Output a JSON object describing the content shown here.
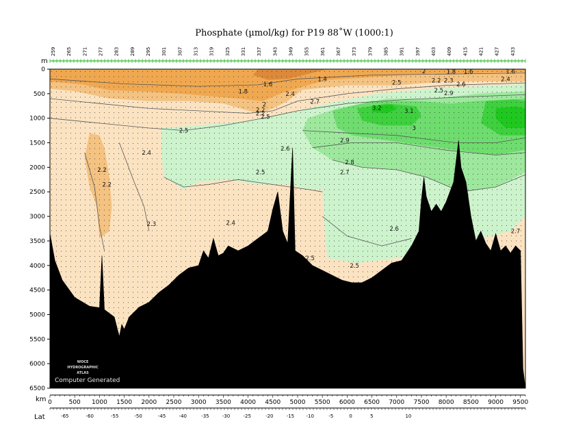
{
  "chart_data": {
    "type": "heatmap",
    "title": "Phosphate (µmol/kg) for P19 88˚W (1000:1)",
    "ylabel": "m",
    "xlabel": "km",
    "lat_label": "Lat",
    "ylim": [
      0,
      6500
    ],
    "xlim": [
      0,
      9600
    ],
    "y_ticks": [
      0,
      500,
      1000,
      1500,
      2000,
      2500,
      3000,
      3500,
      4000,
      4500,
      5000,
      5500,
      6000,
      6500
    ],
    "x_ticks": [
      0,
      500,
      1000,
      1500,
      2000,
      2500,
      3000,
      3500,
      4000,
      4500,
      5000,
      5500,
      6000,
      6500,
      7000,
      7500,
      8000,
      8500,
      9000,
      9500
    ],
    "lat_ticks": [
      {
        "label": "-65",
        "km": 100
      },
      {
        "label": "-60",
        "km": 1050
      },
      {
        "label": "-55",
        "km": 2000
      },
      {
        "label": "-50",
        "km": 2900
      },
      {
        "label": "-45",
        "km": 3800
      },
      {
        "label": "-40",
        "km": 4600
      },
      {
        "label": "-35",
        "km": 5450
      },
      {
        "label": "-30",
        "km": 6250
      },
      {
        "label": "-25",
        "km": 7050
      },
      {
        "label": "-20",
        "km": 7900
      },
      {
        "label": "-15",
        "km": 8700
      },
      {
        "label": "-10",
        "km": 9450
      },
      {
        "label": "-5",
        "km": 10250
      },
      {
        "label": "0",
        "km": 11000
      },
      {
        "label": "5",
        "km": 11800
      },
      {
        "label": "10",
        "km": 13200
      }
    ],
    "station_numbers": [
      "259",
      "265",
      "271",
      "277",
      "283",
      "289",
      "295",
      "301",
      "307",
      "313",
      "319",
      "325",
      "331",
      "337",
      "343",
      "349",
      "355",
      "361",
      "367",
      "373",
      "379",
      "385",
      "391",
      "397",
      "403",
      "409",
      "415",
      "421",
      "427",
      "433"
    ],
    "bathymetry_depth_m": [
      [
        0,
        3350
      ],
      [
        100,
        3900
      ],
      [
        250,
        4300
      ],
      [
        500,
        4650
      ],
      [
        800,
        4830
      ],
      [
        1000,
        4860
      ],
      [
        1050,
        3800
      ],
      [
        1100,
        4900
      ],
      [
        1300,
        5050
      ],
      [
        1400,
        5450
      ],
      [
        1450,
        5200
      ],
      [
        1500,
        5300
      ],
      [
        1600,
        5050
      ],
      [
        1800,
        4850
      ],
      [
        2000,
        4750
      ],
      [
        2200,
        4550
      ],
      [
        2400,
        4400
      ],
      [
        2600,
        4200
      ],
      [
        2800,
        4050
      ],
      [
        3000,
        4000
      ],
      [
        3100,
        3700
      ],
      [
        3200,
        3850
      ],
      [
        3300,
        3450
      ],
      [
        3400,
        3800
      ],
      [
        3500,
        3750
      ],
      [
        3600,
        3600
      ],
      [
        3800,
        3700
      ],
      [
        4000,
        3600
      ],
      [
        4200,
        3450
      ],
      [
        4400,
        3300
      ],
      [
        4500,
        2850
      ],
      [
        4600,
        2500
      ],
      [
        4700,
        3300
      ],
      [
        4800,
        3550
      ],
      [
        4900,
        1600
      ],
      [
        4950,
        3700
      ],
      [
        5100,
        3800
      ],
      [
        5300,
        4000
      ],
      [
        5500,
        4100
      ],
      [
        5700,
        4200
      ],
      [
        5900,
        4300
      ],
      [
        6100,
        4350
      ],
      [
        6300,
        4350
      ],
      [
        6500,
        4250
      ],
      [
        6700,
        4100
      ],
      [
        6900,
        3950
      ],
      [
        7100,
        3900
      ],
      [
        7300,
        3600
      ],
      [
        7450,
        3300
      ],
      [
        7500,
        2650
      ],
      [
        7550,
        2200
      ],
      [
        7600,
        2600
      ],
      [
        7700,
        2900
      ],
      [
        7800,
        2750
      ],
      [
        7900,
        2900
      ],
      [
        8000,
        2700
      ],
      [
        8150,
        2300
      ],
      [
        8250,
        1450
      ],
      [
        8300,
        2000
      ],
      [
        8400,
        2300
      ],
      [
        8500,
        3000
      ],
      [
        8600,
        3500
      ],
      [
        8700,
        3300
      ],
      [
        8800,
        3550
      ],
      [
        8900,
        3700
      ],
      [
        9000,
        3350
      ],
      [
        9100,
        3700
      ],
      [
        9200,
        3600
      ],
      [
        9300,
        3750
      ],
      [
        9400,
        3600
      ],
      [
        9500,
        3700
      ],
      [
        9550,
        6100
      ],
      [
        9600,
        6500
      ]
    ],
    "phosphate_ranges_umol_kg": [
      {
        "range": "< 1.0",
        "color": "#dc8a3a"
      },
      {
        "range": "1.0 - 2.0",
        "color": "#f0a850"
      },
      {
        "range": "2.0 - 2.2",
        "color": "#f4c281"
      },
      {
        "range": "2.2 - 2.5",
        "color": "#fbe3c2"
      },
      {
        "range": "2.5 - 2.6",
        "color": "#cdf3cd"
      },
      {
        "range": "2.6 - 2.8",
        "color": "#9ee89e"
      },
      {
        "range": "2.8 - 3.0",
        "color": "#6edc6e"
      },
      {
        "range": "3.0 - 3.2",
        "color": "#3ed03e"
      },
      {
        "range": "> 3.2",
        "color": "#1ec81e"
      }
    ],
    "contour_labels": [
      {
        "text": "1.4",
        "x": 5500,
        "y": 200
      },
      {
        "text": "1.6",
        "x": 4400,
        "y": 310
      },
      {
        "text": "1.8",
        "x": 3900,
        "y": 450
      },
      {
        "text": "2",
        "x": 4330,
        "y": 720
      },
      {
        "text": "2.2",
        "x": 4250,
        "y": 830
      },
      {
        "text": "2.2",
        "x": 4250,
        "y": 900
      },
      {
        "text": "2.5",
        "x": 4350,
        "y": 970
      },
      {
        "text": "2.4",
        "x": 4850,
        "y": 500
      },
      {
        "text": "2.7",
        "x": 5350,
        "y": 660
      },
      {
        "text": "3.2",
        "x": 6600,
        "y": 790
      },
      {
        "text": "3.1",
        "x": 7250,
        "y": 850
      },
      {
        "text": "3",
        "x": 7350,
        "y": 1200
      },
      {
        "text": "2.9",
        "x": 5950,
        "y": 1450
      },
      {
        "text": "2.8",
        "x": 6050,
        "y": 1900
      },
      {
        "text": "2.7",
        "x": 5950,
        "y": 2100
      },
      {
        "text": "2.6",
        "x": 4750,
        "y": 1620
      },
      {
        "text": "2.5",
        "x": 2700,
        "y": 1250
      },
      {
        "text": "2.4",
        "x": 1950,
        "y": 1700
      },
      {
        "text": "2.2",
        "x": 1050,
        "y": 2050
      },
      {
        "text": "2.2",
        "x": 1150,
        "y": 2350
      },
      {
        "text": "2.5",
        "x": 4250,
        "y": 2100
      },
      {
        "text": "2.3",
        "x": 2050,
        "y": 3150
      },
      {
        "text": "2.4",
        "x": 3650,
        "y": 3130
      },
      {
        "text": "2.6",
        "x": 6950,
        "y": 3250
      },
      {
        "text": "2.5",
        "x": 5250,
        "y": 3850
      },
      {
        "text": "2.5",
        "x": 6150,
        "y": 4000
      },
      {
        "text": "2.7",
        "x": 9400,
        "y": 3300
      },
      {
        "text": "2.5",
        "x": 7000,
        "y": 270
      },
      {
        "text": "2.2",
        "x": 7800,
        "y": 230
      },
      {
        "text": "2",
        "x": 7550,
        "y": 40
      },
      {
        "text": "1.8",
        "x": 8100,
        "y": 50
      },
      {
        "text": "1.6",
        "x": 8450,
        "y": 50
      },
      {
        "text": "1.6",
        "x": 9300,
        "y": 50
      },
      {
        "text": "2.3",
        "x": 8050,
        "y": 230
      },
      {
        "text": "2.6",
        "x": 8300,
        "y": 310
      },
      {
        "text": "2.4",
        "x": 9200,
        "y": 200
      },
      {
        "text": "2.5",
        "x": 7850,
        "y": 430
      },
      {
        "text": "2.9",
        "x": 8050,
        "y": 490
      }
    ],
    "watermark_lines": [
      "WOCE",
      "HYDROGRAPHIC",
      "ATLAS"
    ],
    "watermark_caption": "Computer Generated",
    "grid": false
  }
}
